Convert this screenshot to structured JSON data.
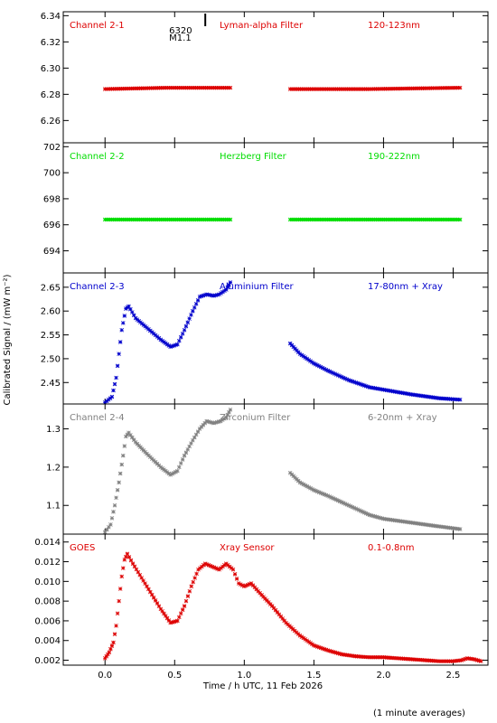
{
  "figure": {
    "ylabel": "Calibrated Signal / (mW m⁻²)",
    "xlabel": "Time / h UTC, 11 Feb 2026",
    "footnote": "(1 minute averages)",
    "xlim": [
      -0.3,
      2.75
    ],
    "xticks": [
      0.0,
      0.5,
      1.0,
      1.5,
      2.0,
      2.5
    ],
    "xtick_labels": [
      "0.0",
      "0.5",
      "1.0",
      "1.5",
      "2.0",
      "2.5"
    ],
    "marker_annotation": {
      "label_top": "6320",
      "label_bottom": "M1.1",
      "x": 0.72
    }
  },
  "chart_data": [
    {
      "type": "scatter",
      "channel": "Channel 2-1",
      "filter": "Lyman-alpha Filter",
      "band": "120-123nm",
      "color": "#dd0000",
      "ylim": [
        6.243,
        6.343
      ],
      "yticks": [
        6.26,
        6.28,
        6.3,
        6.32,
        6.34
      ],
      "ytick_labels": [
        "6.26",
        "6.28",
        "6.30",
        "6.32",
        "6.34"
      ],
      "segments": [
        {
          "x": [
            0.0,
            0.45,
            0.9
          ],
          "y": [
            6.284,
            6.285,
            6.285
          ]
        },
        {
          "x": [
            1.33,
            1.9,
            2.55
          ],
          "y": [
            6.284,
            6.284,
            6.285
          ]
        }
      ]
    },
    {
      "type": "scatter",
      "channel": "Channel 2-2",
      "filter": "Herzberg Filter",
      "band": "190-222nm",
      "color": "#00dd00",
      "ylim": [
        692.3,
        702.3
      ],
      "yticks": [
        694,
        696,
        698,
        700,
        702
      ],
      "ytick_labels": [
        "694",
        "696",
        "698",
        "700",
        "702"
      ],
      "segments": [
        {
          "x": [
            0.0,
            0.45,
            0.9
          ],
          "y": [
            696.4,
            696.4,
            696.4
          ]
        },
        {
          "x": [
            1.33,
            1.9,
            2.55
          ],
          "y": [
            696.4,
            696.4,
            696.4
          ]
        }
      ]
    },
    {
      "type": "scatter",
      "channel": "Channel 2-3",
      "filter": "Aluminium Filter",
      "band": "17-80nm + Xray",
      "color": "#0000cc",
      "ylim": [
        2.405,
        2.68
      ],
      "yticks": [
        2.45,
        2.5,
        2.55,
        2.6,
        2.65
      ],
      "ytick_labels": [
        "2.45",
        "2.50",
        "2.55",
        "2.60",
        "2.65"
      ],
      "segments": [
        {
          "x": [
            0.0,
            0.05,
            0.08,
            0.1,
            0.12,
            0.15,
            0.17,
            0.22,
            0.3,
            0.4,
            0.47,
            0.52,
            0.57,
            0.63,
            0.68,
            0.73,
            0.78,
            0.82,
            0.87,
            0.9
          ],
          "y": [
            2.408,
            2.42,
            2.46,
            2.51,
            2.56,
            2.605,
            2.61,
            2.585,
            2.565,
            2.54,
            2.525,
            2.53,
            2.56,
            2.6,
            2.63,
            2.635,
            2.632,
            2.635,
            2.645,
            2.66
          ]
        },
        {
          "x": [
            1.33,
            1.4,
            1.5,
            1.6,
            1.75,
            1.9,
            2.0,
            2.2,
            2.4,
            2.55
          ],
          "y": [
            2.532,
            2.51,
            2.49,
            2.475,
            2.455,
            2.44,
            2.435,
            2.425,
            2.417,
            2.414
          ]
        }
      ]
    },
    {
      "type": "scatter",
      "channel": "Channel 2-4",
      "filter": "Zirconium Filter",
      "band": "6-20nm + Xray",
      "color": "#808080",
      "ylim": [
        1.025,
        1.365
      ],
      "yticks": [
        1.1,
        1.2,
        1.3
      ],
      "ytick_labels": [
        "1.1",
        "1.2",
        "1.3"
      ],
      "segments": [
        {
          "x": [
            0.0,
            0.04,
            0.07,
            0.1,
            0.13,
            0.15,
            0.17,
            0.22,
            0.3,
            0.4,
            0.47,
            0.52,
            0.57,
            0.63,
            0.68,
            0.73,
            0.78,
            0.83,
            0.87,
            0.9
          ],
          "y": [
            1.03,
            1.05,
            1.1,
            1.16,
            1.23,
            1.28,
            1.29,
            1.265,
            1.235,
            1.2,
            1.18,
            1.19,
            1.23,
            1.27,
            1.3,
            1.32,
            1.315,
            1.32,
            1.33,
            1.35
          ]
        },
        {
          "x": [
            1.33,
            1.4,
            1.5,
            1.6,
            1.75,
            1.9,
            2.0,
            2.2,
            2.4,
            2.55
          ],
          "y": [
            1.185,
            1.16,
            1.14,
            1.125,
            1.1,
            1.075,
            1.065,
            1.055,
            1.045,
            1.038
          ]
        }
      ]
    },
    {
      "type": "scatter",
      "channel": "GOES",
      "filter": "Xray Sensor",
      "band": "0.1-0.8nm",
      "color": "#dd0000",
      "ylim": [
        0.0015,
        0.0148
      ],
      "yticks": [
        0.002,
        0.004,
        0.006,
        0.008,
        0.01,
        0.012,
        0.014
      ],
      "ytick_labels": [
        "0.002",
        "0.004",
        "0.006",
        "0.008",
        "0.010",
        "0.012",
        "0.014"
      ],
      "segments": [
        {
          "x": [
            0.0,
            0.03,
            0.06,
            0.08,
            0.1,
            0.12,
            0.14,
            0.16,
            0.2,
            0.3,
            0.4,
            0.47,
            0.52,
            0.57,
            0.62,
            0.67,
            0.72,
            0.77,
            0.82,
            0.87,
            0.92,
            0.96,
            1.0,
            1.05,
            1.1,
            1.2,
            1.3,
            1.4,
            1.5,
            1.6,
            1.7,
            1.8,
            1.9,
            2.0,
            2.1,
            2.2,
            2.3,
            2.4,
            2.5,
            2.56,
            2.6,
            2.65,
            2.7
          ],
          "y": [
            0.0022,
            0.0028,
            0.0038,
            0.0055,
            0.008,
            0.0105,
            0.0122,
            0.0128,
            0.0118,
            0.0095,
            0.0072,
            0.0058,
            0.006,
            0.0075,
            0.0095,
            0.0112,
            0.0118,
            0.0115,
            0.0112,
            0.0118,
            0.0112,
            0.0098,
            0.0095,
            0.0098,
            0.009,
            0.0075,
            0.0058,
            0.0045,
            0.0035,
            0.003,
            0.0026,
            0.0024,
            0.0023,
            0.0023,
            0.0022,
            0.0021,
            0.002,
            0.0019,
            0.0019,
            0.002,
            0.0022,
            0.0021,
            0.0019
          ]
        }
      ]
    }
  ]
}
